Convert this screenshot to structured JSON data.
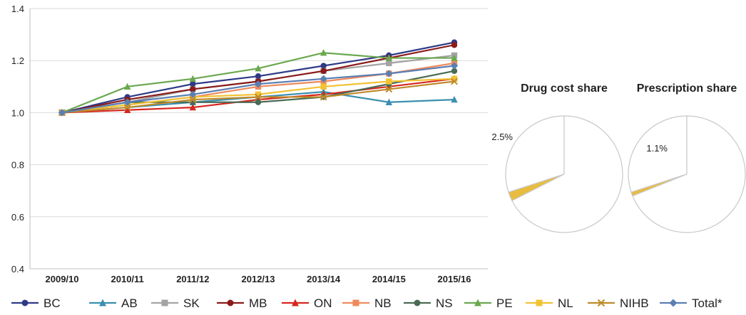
{
  "chart_data": [
    {
      "type": "line",
      "categories": [
        "2009/10",
        "2010/11",
        "2011/12",
        "2012/13",
        "2013/14",
        "2014/15",
        "2015/16"
      ],
      "ylim": [
        0.4,
        1.4
      ],
      "yticks": [
        "0.4",
        "0.6",
        "0.8",
        "1.0",
        "1.2",
        "1.4"
      ],
      "grid": "horizontal",
      "legend_position": "bottom",
      "series": [
        {
          "name": "BC",
          "color": "#2e3a87",
          "marker": "circle",
          "values": [
            1.0,
            1.06,
            1.11,
            1.14,
            1.18,
            1.22,
            1.27
          ]
        },
        {
          "name": "AB",
          "color": "#3b8fb0",
          "marker": "triangle",
          "values": [
            1.0,
            1.02,
            1.04,
            1.06,
            1.08,
            1.04,
            1.05
          ]
        },
        {
          "name": "SK",
          "color": "#a3a3a3",
          "marker": "square",
          "values": [
            1.0,
            1.04,
            1.09,
            1.12,
            1.16,
            1.19,
            1.22
          ]
        },
        {
          "name": "MB",
          "color": "#8b1a1a",
          "marker": "circle",
          "values": [
            1.0,
            1.05,
            1.09,
            1.12,
            1.16,
            1.21,
            1.26
          ]
        },
        {
          "name": "ON",
          "color": "#d7261e",
          "marker": "triangle",
          "values": [
            1.0,
            1.01,
            1.02,
            1.05,
            1.07,
            1.1,
            1.13
          ]
        },
        {
          "name": "NB",
          "color": "#ee8a5c",
          "marker": "square",
          "values": [
            1.0,
            1.03,
            1.06,
            1.1,
            1.12,
            1.15,
            1.19
          ]
        },
        {
          "name": "NS",
          "color": "#4a6b55",
          "marker": "circle",
          "values": [
            1.0,
            1.04,
            1.04,
            1.04,
            1.06,
            1.11,
            1.16
          ]
        },
        {
          "name": "PE",
          "color": "#6aa84f",
          "marker": "triangle",
          "values": [
            1.0,
            1.1,
            1.13,
            1.17,
            1.23,
            1.21,
            1.21
          ]
        },
        {
          "name": "NL",
          "color": "#f1c232",
          "marker": "square",
          "values": [
            1.0,
            1.03,
            1.06,
            1.07,
            1.1,
            1.12,
            1.13
          ]
        },
        {
          "name": "NIHB",
          "color": "#bf8a2b",
          "marker": "x",
          "values": [
            1.0,
            1.02,
            1.05,
            1.06,
            1.06,
            1.09,
            1.12
          ]
        },
        {
          "name": "Total*",
          "color": "#5b7fb3",
          "marker": "diamond",
          "values": [
            1.0,
            1.04,
            1.07,
            1.11,
            1.13,
            1.15,
            1.18
          ]
        }
      ]
    },
    {
      "type": "pie",
      "title": "Drug cost share",
      "highlight": {
        "value": 2.5,
        "label": "2.5%",
        "color": "#e8bd3f"
      },
      "slices": [
        {
          "value": 30,
          "color": "#ffffff"
        },
        {
          "value": 2.5,
          "color": "#e8bd3f"
        },
        {
          "value": 67.5,
          "color": "#ffffff"
        }
      ],
      "outline_color": "#c8c8c8"
    },
    {
      "type": "pie",
      "title": "Prescription share",
      "highlight": {
        "value": 1.1,
        "label": "1.1%",
        "color": "#e8bd3f"
      },
      "slices": [
        {
          "value": 30,
          "color": "#ffffff"
        },
        {
          "value": 1.1,
          "color": "#e8bd3f"
        },
        {
          "value": 68.9,
          "color": "#ffffff"
        }
      ],
      "outline_color": "#c8c8c8"
    }
  ]
}
